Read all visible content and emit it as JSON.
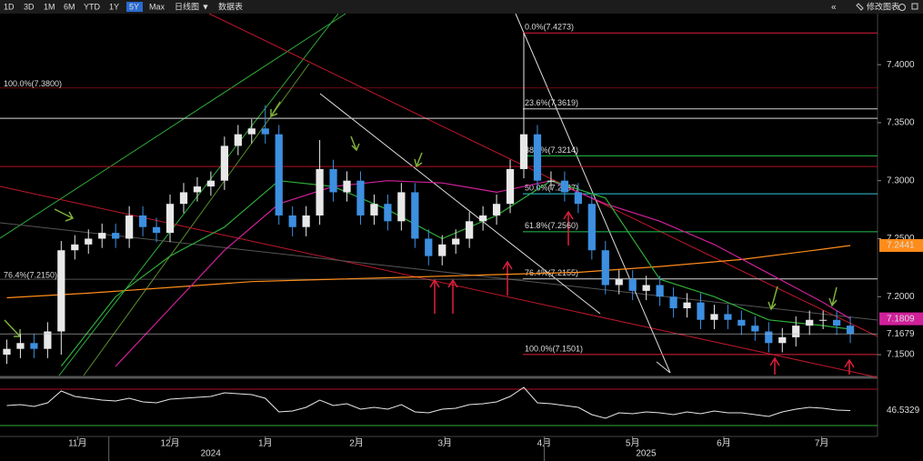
{
  "toolbar": {
    "buttons": [
      "1D",
      "3D",
      "1M",
      "6M",
      "YTD",
      "1Y",
      "5Y",
      "Max",
      "日线图 ▼",
      "数据表"
    ],
    "active": "5Y",
    "right": [
      "«",
      "修改图表"
    ]
  },
  "chart_data": {
    "type": "candlestick",
    "x": [
      0,
      1,
      2,
      3,
      4,
      5,
      6,
      7,
      8,
      9,
      10,
      11,
      12,
      13,
      14,
      15,
      16,
      17,
      18,
      19,
      20,
      21,
      22,
      23,
      24,
      25,
      26,
      27,
      28,
      29,
      30,
      31,
      32,
      33,
      34,
      35,
      36,
      37,
      38,
      39,
      40,
      41,
      42,
      43,
      44,
      45,
      46,
      47,
      48,
      49,
      50,
      51,
      52,
      53,
      54,
      55,
      56,
      57,
      58,
      59,
      60,
      61,
      62
    ],
    "xlim": [
      -0.5,
      64
    ],
    "xticks": [
      {
        "value": 5.2,
        "label": "11月"
      },
      {
        "value": 12,
        "label": "12月"
      },
      {
        "value": 19,
        "label": "1月"
      },
      {
        "value": 25.7,
        "label": "2月"
      },
      {
        "value": 32.2,
        "label": "3月"
      },
      {
        "value": 39.5,
        "label": "4月"
      },
      {
        "value": 46,
        "label": "5月"
      },
      {
        "value": 52.7,
        "label": "6月"
      },
      {
        "value": 59.9,
        "label": "7月"
      }
    ],
    "years": [
      {
        "value": 7.5,
        "label": "2024"
      },
      {
        "value": 39.5,
        "label": "2025"
      }
    ],
    "ylim": [
      7.132,
      7.444
    ],
    "yticks": [
      {
        "value": 7.4,
        "label": "7.4000"
      },
      {
        "value": 7.35,
        "label": "7.3500"
      },
      {
        "value": 7.3,
        "label": "7.3000"
      },
      {
        "value": 7.25,
        "label": "7.2500"
      },
      {
        "value": 7.2,
        "label": "7.2000"
      },
      {
        "value": 7.15,
        "label": "7.1500"
      }
    ],
    "up_color": "#e8e8e8",
    "down_color": "#3d8fe0",
    "candles": {
      "open": [
        7.15,
        7.155,
        7.16,
        7.155,
        7.17,
        7.24,
        7.245,
        7.25,
        7.255,
        7.25,
        7.27,
        7.26,
        7.255,
        7.28,
        7.29,
        7.295,
        7.3,
        7.33,
        7.34,
        7.345,
        7.34,
        7.27,
        7.26,
        7.27,
        7.31,
        7.29,
        7.3,
        7.27,
        7.28,
        7.265,
        7.29,
        7.25,
        7.235,
        7.245,
        7.25,
        7.265,
        7.27,
        7.28,
        7.31,
        7.34,
        7.3,
        7.3,
        7.29,
        7.28,
        7.24,
        7.21,
        7.215,
        7.205,
        7.21,
        7.2,
        7.19,
        7.195,
        7.18,
        7.185,
        7.18,
        7.175,
        7.17,
        7.16,
        7.165,
        7.175,
        7.18,
        7.18,
        7.175
      ],
      "high": [
        7.163,
        7.168,
        7.168,
        7.178,
        7.248,
        7.253,
        7.258,
        7.263,
        7.263,
        7.278,
        7.278,
        7.268,
        7.288,
        7.298,
        7.303,
        7.308,
        7.338,
        7.348,
        7.353,
        7.365,
        7.348,
        7.278,
        7.278,
        7.335,
        7.318,
        7.308,
        7.308,
        7.288,
        7.288,
        7.298,
        7.298,
        7.258,
        7.253,
        7.258,
        7.273,
        7.278,
        7.288,
        7.318,
        7.4273,
        7.348,
        7.308,
        7.308,
        7.298,
        7.288,
        7.248,
        7.223,
        7.223,
        7.218,
        7.218,
        7.208,
        7.203,
        7.203,
        7.193,
        7.193,
        7.188,
        7.183,
        7.178,
        7.173,
        7.183,
        7.188,
        7.188,
        7.188,
        7.183
      ],
      "low": [
        7.142,
        7.147,
        7.147,
        7.147,
        7.15,
        7.232,
        7.237,
        7.242,
        7.242,
        7.242,
        7.252,
        7.247,
        7.247,
        7.272,
        7.282,
        7.287,
        7.292,
        7.322,
        7.332,
        7.332,
        7.262,
        7.252,
        7.252,
        7.262,
        7.282,
        7.282,
        7.262,
        7.262,
        7.257,
        7.257,
        7.242,
        7.227,
        7.227,
        7.237,
        7.242,
        7.257,
        7.262,
        7.272,
        7.302,
        7.292,
        7.292,
        7.282,
        7.272,
        7.232,
        7.202,
        7.202,
        7.197,
        7.197,
        7.192,
        7.182,
        7.182,
        7.172,
        7.172,
        7.172,
        7.167,
        7.162,
        7.152,
        7.152,
        7.157,
        7.167,
        7.172,
        7.167,
        7.16
      ],
      "close": [
        7.155,
        7.16,
        7.155,
        7.17,
        7.24,
        7.245,
        7.25,
        7.255,
        7.25,
        7.27,
        7.26,
        7.255,
        7.28,
        7.29,
        7.295,
        7.3,
        7.33,
        7.34,
        7.345,
        7.34,
        7.27,
        7.26,
        7.27,
        7.31,
        7.29,
        7.3,
        7.27,
        7.28,
        7.265,
        7.29,
        7.25,
        7.235,
        7.245,
        7.25,
        7.265,
        7.27,
        7.28,
        7.31,
        7.34,
        7.3,
        7.3,
        7.29,
        7.28,
        7.24,
        7.21,
        7.215,
        7.205,
        7.21,
        7.2,
        7.19,
        7.195,
        7.18,
        7.185,
        7.18,
        7.175,
        7.17,
        7.16,
        7.165,
        7.175,
        7.18,
        7.18,
        7.175,
        7.1679
      ]
    },
    "series": [
      {
        "color": "#ff8c1a",
        "x": [
          0,
          6,
          12,
          18,
          24,
          30,
          36,
          42,
          48,
          54,
          60,
          62
        ],
        "values": [
          7.199,
          7.203,
          7.208,
          7.213,
          7.215,
          7.217,
          7.219,
          7.221,
          7.226,
          7.232,
          7.241,
          7.2441
        ],
        "boxed": true
      },
      {
        "color": "#d0209a",
        "x": [
          8,
          12,
          16,
          20,
          24,
          28,
          32,
          36,
          40,
          44,
          48,
          52,
          56,
          60,
          62
        ],
        "values": [
          7.14,
          7.19,
          7.24,
          7.28,
          7.295,
          7.3,
          7.298,
          7.29,
          7.3,
          7.28,
          7.265,
          7.245,
          7.22,
          7.195,
          7.1809
        ],
        "boxed": true
      },
      {
        "color": "#2fae3a",
        "x": [
          4,
          8,
          12,
          16,
          20,
          24,
          28,
          32,
          36,
          40,
          44,
          48,
          52,
          56,
          60,
          62
        ],
        "values": [
          7.14,
          7.2,
          7.235,
          7.26,
          7.3,
          7.295,
          7.275,
          7.25,
          7.27,
          7.3,
          7.285,
          7.215,
          7.2,
          7.18,
          7.175,
          7.172
        ]
      }
    ],
    "fib_right": [
      {
        "value": 7.4273,
        "label": "0.0%(7.4273)",
        "color": "#e0203c"
      },
      {
        "value": 7.3619,
        "label": "23.6%(7.3619)",
        "color": "#cfcfcf"
      },
      {
        "value": 7.3214,
        "label": "38.2%(7.3214)",
        "color": "#22c34a"
      },
      {
        "value": 7.2887,
        "label": "50.0%(7.2887)",
        "color": "#2ec9d6"
      },
      {
        "value": 7.256,
        "label": "61.8%(7.2560)",
        "color": "#22c34a"
      },
      {
        "value": 7.2155,
        "label": "76.4%(7.2155)",
        "color": "#aaaaaa"
      },
      {
        "value": 7.1501,
        "label": "100.0%(7.1501)",
        "color": "#e0203c"
      }
    ],
    "fib_left": [
      {
        "value": 7.38,
        "label": "100.0%(7.3800)",
        "color": "#b01020"
      },
      {
        "value": 7.215,
        "label": "76.4%(7.2150)",
        "color": "#888888"
      }
    ],
    "levels": [
      {
        "value": 7.3538,
        "color": "#d8d8d8"
      },
      {
        "value": 7.3122,
        "color": "#b01020"
      }
    ],
    "rsi": {
      "ylim": [
        20,
        80
      ],
      "levels": [
        {
          "value": 70,
          "color": "#b01020"
        },
        {
          "value": 30,
          "color": "#2fae3a"
        }
      ],
      "values": [
        52,
        53,
        51,
        55,
        68,
        62,
        60,
        58,
        57,
        60,
        56,
        55,
        59,
        60,
        61,
        62,
        66,
        65,
        64,
        60,
        45,
        46,
        50,
        58,
        52,
        54,
        48,
        50,
        48,
        53,
        45,
        44,
        48,
        49,
        53,
        54,
        56,
        62,
        72,
        55,
        54,
        52,
        50,
        42,
        38,
        44,
        43,
        45,
        44,
        42,
        45,
        43,
        46,
        44,
        44,
        42,
        40,
        45,
        48,
        50,
        49,
        47,
        46.5329
      ]
    }
  }
}
